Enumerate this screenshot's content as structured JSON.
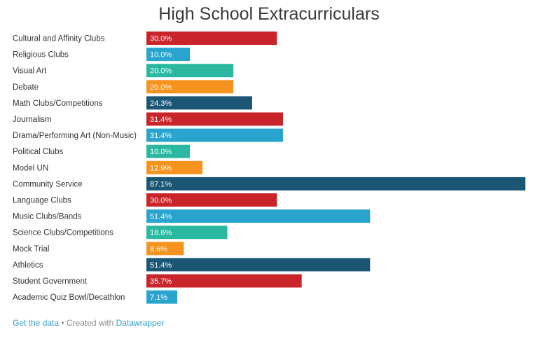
{
  "chart_data": {
    "type": "bar",
    "orientation": "horizontal",
    "title": "High School Extracurriculars",
    "categories": [
      "Cultural and Affinity Clubs",
      "Religious Clubs",
      "Visual Art",
      "Debate",
      "Math Clubs/Competitions",
      "Journalism",
      "Drama/Performing Art (Non-Music)",
      "Political Clubs",
      "Model UN",
      "Community Service",
      "Language Clubs",
      "Music Clubs/Bands",
      "Science Clubs/Competitions",
      "Mock Trial",
      "Athletics",
      "Student Government",
      "Academic Quiz Bowl/Decathlon"
    ],
    "values": [
      30.0,
      10.0,
      20.0,
      20.0,
      24.3,
      31.4,
      31.4,
      10.0,
      12.9,
      87.1,
      30.0,
      51.4,
      18.6,
      8.6,
      51.4,
      35.7,
      7.1
    ],
    "value_labels": [
      "30.0%",
      "10.0%",
      "20.0%",
      "20.0%",
      "24.3%",
      "31.4%",
      "31.4%",
      "10.0%",
      "12.9%",
      "87.1%",
      "30.0%",
      "51.4%",
      "18.6%",
      "8.6%",
      "51.4%",
      "35.7%",
      "7.1%"
    ],
    "bar_colors": [
      "#c8242a",
      "#29a4cf",
      "#2ab8a0",
      "#f6931e",
      "#1b5675",
      "#c8242a",
      "#29a4cf",
      "#2ab8a0",
      "#f6931e",
      "#1b5675",
      "#c8242a",
      "#29a4cf",
      "#2ab8a0",
      "#f6931e",
      "#1b5675",
      "#c8242a",
      "#29a4cf"
    ],
    "xlim": [
      0,
      87.1
    ],
    "xlabel": "",
    "ylabel": "",
    "grid": false
  },
  "footer": {
    "get_data": "Get the data",
    "separator": " • Created with ",
    "datawrapper": "Datawrapper"
  }
}
